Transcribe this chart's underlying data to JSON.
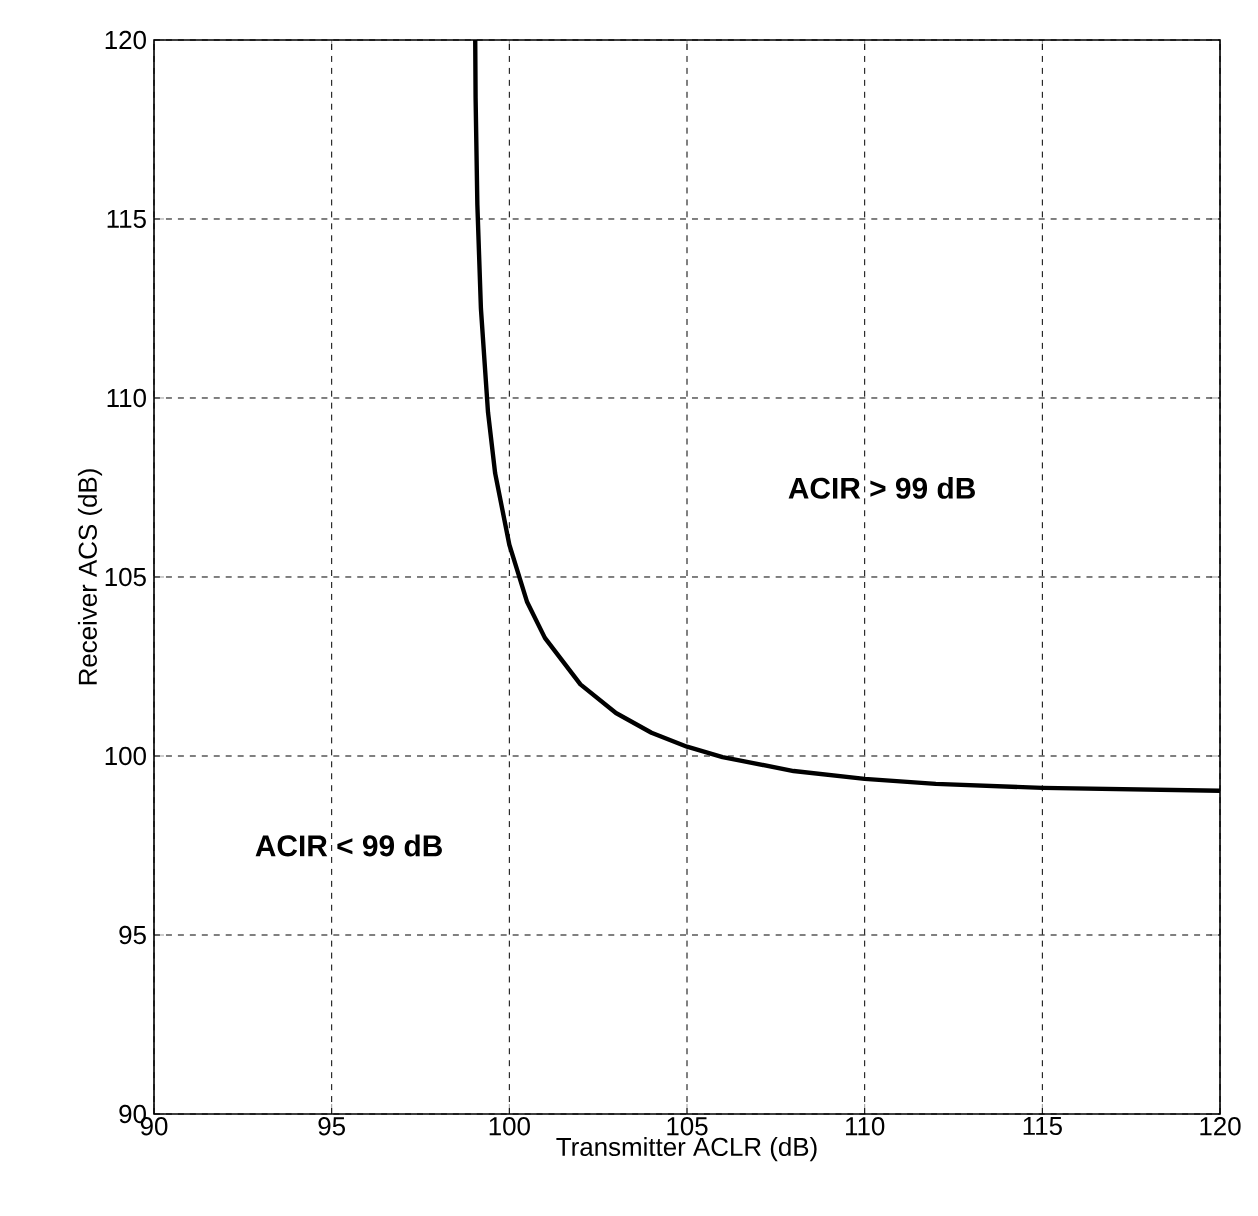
{
  "chart_data": {
    "type": "line",
    "xlabel": "Transmitter ACLR (dB)",
    "ylabel": "Receiver ACS (dB)",
    "xlim": [
      90,
      120
    ],
    "ylim": [
      90,
      120
    ],
    "xticks": [
      90,
      95,
      100,
      105,
      110,
      115,
      120
    ],
    "yticks": [
      90,
      95,
      100,
      105,
      110,
      115,
      120
    ],
    "grid": true,
    "marker": "none",
    "line_style": "solid",
    "series": [
      {
        "color": "#000000",
        "x": [
          99.04,
          99.05,
          99.1,
          99.2,
          99.4,
          99.6,
          100,
          100.5,
          101,
          102,
          103,
          104,
          105,
          106,
          108,
          110,
          112,
          115,
          120
        ],
        "values": [
          120,
          118.4,
          115.4,
          112.5,
          109.6,
          107.9,
          105.9,
          104.3,
          103.3,
          102.0,
          101.2,
          100.65,
          100.26,
          99.97,
          99.58,
          99.36,
          99.22,
          99.11,
          99.03
        ]
      }
    ],
    "annotations": [
      "ACIR > 99 dB",
      "ACIR < 99 dB"
    ]
  }
}
